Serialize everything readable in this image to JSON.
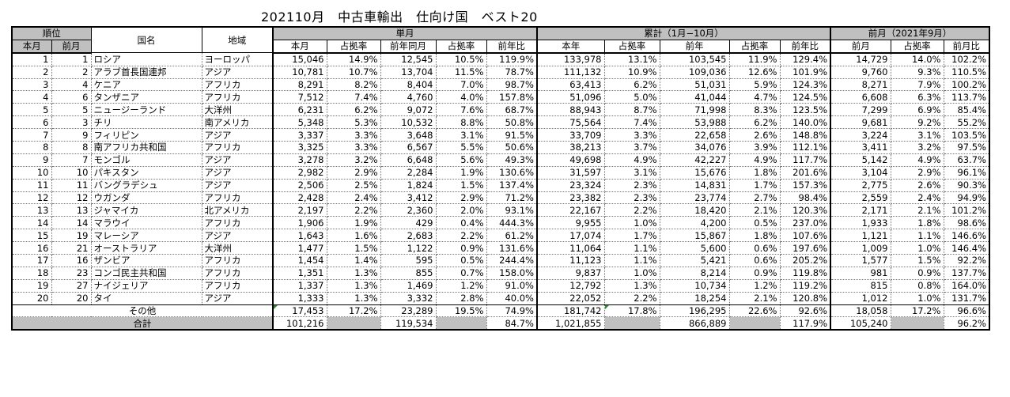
{
  "title": "202110月　中古車輸出　仕向け国　ベスト20",
  "headers": {
    "rank": "順位",
    "country": "国名",
    "region": "地域",
    "monthly": "単月",
    "cumulative": "累計（1月−10月）",
    "prev_month": "前月（2021年9月）",
    "this_month_rank": "本月",
    "prev_month_rank": "前月",
    "m_this": "本月",
    "m_share": "占拠率",
    "m_prev_year": "前年同月",
    "m_share2": "占拠率",
    "m_yoy": "前年比",
    "c_this": "本年",
    "c_share": "占拠率",
    "c_prev": "前年",
    "c_share2": "占拠率",
    "c_yoy": "前年比",
    "p_prev": "前月",
    "p_share": "占拠率",
    "p_ratio": "前月比"
  },
  "rows": [
    {
      "rank": "1",
      "prev": "1",
      "country": "ロシア",
      "region": "ヨーロッパ",
      "m": "15,046",
      "ms": "14.9%",
      "my": "12,545",
      "mys": "10.5%",
      "myoy": "119.9%",
      "c": "133,978",
      "cs": "13.1%",
      "cp": "103,545",
      "cps": "11.9%",
      "cyoy": "129.4%",
      "p": "14,729",
      "ps": "14.0%",
      "pr": "102.2%"
    },
    {
      "rank": "2",
      "prev": "2",
      "country": "アラブ首長国連邦",
      "region": "アジア",
      "m": "10,781",
      "ms": "10.7%",
      "my": "13,704",
      "mys": "11.5%",
      "myoy": "78.7%",
      "c": "111,132",
      "cs": "10.9%",
      "cp": "109,036",
      "cps": "12.6%",
      "cyoy": "101.9%",
      "p": "9,760",
      "ps": "9.3%",
      "pr": "110.5%"
    },
    {
      "rank": "3",
      "prev": "4",
      "country": "ケニア",
      "region": "アフリカ",
      "m": "8,291",
      "ms": "8.2%",
      "my": "8,404",
      "mys": "7.0%",
      "myoy": "98.7%",
      "c": "63,413",
      "cs": "6.2%",
      "cp": "51,031",
      "cps": "5.9%",
      "cyoy": "124.3%",
      "p": "8,271",
      "ps": "7.9%",
      "pr": "100.2%"
    },
    {
      "rank": "4",
      "prev": "6",
      "country": "タンザニア",
      "region": "アフリカ",
      "m": "7,512",
      "ms": "7.4%",
      "my": "4,760",
      "mys": "4.0%",
      "myoy": "157.8%",
      "c": "51,096",
      "cs": "5.0%",
      "cp": "41,044",
      "cps": "4.7%",
      "cyoy": "124.5%",
      "p": "6,608",
      "ps": "6.3%",
      "pr": "113.7%"
    },
    {
      "rank": "5",
      "prev": "5",
      "country": "ニュージーランド",
      "region": "大洋州",
      "m": "6,231",
      "ms": "6.2%",
      "my": "9,072",
      "mys": "7.6%",
      "myoy": "68.7%",
      "c": "88,943",
      "cs": "8.7%",
      "cp": "71,998",
      "cps": "8.3%",
      "cyoy": "123.5%",
      "p": "7,299",
      "ps": "6.9%",
      "pr": "85.4%"
    },
    {
      "rank": "6",
      "prev": "3",
      "country": "チリ",
      "region": "南アメリカ",
      "m": "5,348",
      "ms": "5.3%",
      "my": "10,532",
      "mys": "8.8%",
      "myoy": "50.8%",
      "c": "75,564",
      "cs": "7.4%",
      "cp": "53,988",
      "cps": "6.2%",
      "cyoy": "140.0%",
      "p": "9,681",
      "ps": "9.2%",
      "pr": "55.2%"
    },
    {
      "rank": "7",
      "prev": "9",
      "country": "フィリピン",
      "region": "アジア",
      "m": "3,337",
      "ms": "3.3%",
      "my": "3,648",
      "mys": "3.1%",
      "myoy": "91.5%",
      "c": "33,709",
      "cs": "3.3%",
      "cp": "22,658",
      "cps": "2.6%",
      "cyoy": "148.8%",
      "p": "3,224",
      "ps": "3.1%",
      "pr": "103.5%"
    },
    {
      "rank": "8",
      "prev": "8",
      "country": "南アフリカ共和国",
      "region": "アフリカ",
      "m": "3,325",
      "ms": "3.3%",
      "my": "6,567",
      "mys": "5.5%",
      "myoy": "50.6%",
      "c": "38,213",
      "cs": "3.7%",
      "cp": "34,076",
      "cps": "3.9%",
      "cyoy": "112.1%",
      "p": "3,411",
      "ps": "3.2%",
      "pr": "97.5%"
    },
    {
      "rank": "9",
      "prev": "7",
      "country": "モンゴル",
      "region": "アジア",
      "m": "3,278",
      "ms": "3.2%",
      "my": "6,648",
      "mys": "5.6%",
      "myoy": "49.3%",
      "c": "49,698",
      "cs": "4.9%",
      "cp": "42,227",
      "cps": "4.9%",
      "cyoy": "117.7%",
      "p": "5,142",
      "ps": "4.9%",
      "pr": "63.7%"
    },
    {
      "rank": "10",
      "prev": "10",
      "country": "パキスタン",
      "region": "アジア",
      "m": "2,982",
      "ms": "2.9%",
      "my": "2,284",
      "mys": "1.9%",
      "myoy": "130.6%",
      "c": "31,597",
      "cs": "3.1%",
      "cp": "15,676",
      "cps": "1.8%",
      "cyoy": "201.6%",
      "p": "3,104",
      "ps": "2.9%",
      "pr": "96.1%"
    },
    {
      "rank": "11",
      "prev": "11",
      "country": "バングラデシュ",
      "region": "アジア",
      "m": "2,506",
      "ms": "2.5%",
      "my": "1,824",
      "mys": "1.5%",
      "myoy": "137.4%",
      "c": "23,324",
      "cs": "2.3%",
      "cp": "14,831",
      "cps": "1.7%",
      "cyoy": "157.3%",
      "p": "2,775",
      "ps": "2.6%",
      "pr": "90.3%"
    },
    {
      "rank": "12",
      "prev": "12",
      "country": "ウガンダ",
      "region": "アフリカ",
      "m": "2,428",
      "ms": "2.4%",
      "my": "3,412",
      "mys": "2.9%",
      "myoy": "71.2%",
      "c": "23,382",
      "cs": "2.3%",
      "cp": "23,774",
      "cps": "2.7%",
      "cyoy": "98.4%",
      "p": "2,559",
      "ps": "2.4%",
      "pr": "94.9%"
    },
    {
      "rank": "13",
      "prev": "13",
      "country": "ジャマイカ",
      "region": "北アメリカ",
      "m": "2,197",
      "ms": "2.2%",
      "my": "2,360",
      "mys": "2.0%",
      "myoy": "93.1%",
      "c": "22,167",
      "cs": "2.2%",
      "cp": "18,420",
      "cps": "2.1%",
      "cyoy": "120.3%",
      "p": "2,171",
      "ps": "2.1%",
      "pr": "101.2%"
    },
    {
      "rank": "14",
      "prev": "14",
      "country": "マラウイ",
      "region": "アフリカ",
      "m": "1,906",
      "ms": "1.9%",
      "my": "429",
      "mys": "0.4%",
      "myoy": "444.3%",
      "c": "9,955",
      "cs": "1.0%",
      "cp": "4,200",
      "cps": "0.5%",
      "cyoy": "237.0%",
      "p": "1,933",
      "ps": "1.8%",
      "pr": "98.6%"
    },
    {
      "rank": "15",
      "prev": "19",
      "country": "マレーシア",
      "region": "アジア",
      "m": "1,643",
      "ms": "1.6%",
      "my": "2,683",
      "mys": "2.2%",
      "myoy": "61.2%",
      "c": "17,074",
      "cs": "1.7%",
      "cp": "15,867",
      "cps": "1.8%",
      "cyoy": "107.6%",
      "p": "1,121",
      "ps": "1.1%",
      "pr": "146.6%"
    },
    {
      "rank": "16",
      "prev": "21",
      "country": "オーストラリア",
      "region": "大洋州",
      "m": "1,477",
      "ms": "1.5%",
      "my": "1,122",
      "mys": "0.9%",
      "myoy": "131.6%",
      "c": "11,064",
      "cs": "1.1%",
      "cp": "5,600",
      "cps": "0.6%",
      "cyoy": "197.6%",
      "p": "1,009",
      "ps": "1.0%",
      "pr": "146.4%"
    },
    {
      "rank": "17",
      "prev": "16",
      "country": "ザンビア",
      "region": "アフリカ",
      "m": "1,454",
      "ms": "1.4%",
      "my": "595",
      "mys": "0.5%",
      "myoy": "244.4%",
      "c": "11,123",
      "cs": "1.1%",
      "cp": "5,421",
      "cps": "0.6%",
      "cyoy": "205.2%",
      "p": "1,577",
      "ps": "1.5%",
      "pr": "92.2%"
    },
    {
      "rank": "18",
      "prev": "23",
      "country": "コンゴ民主共和国",
      "region": "アフリカ",
      "m": "1,351",
      "ms": "1.3%",
      "my": "855",
      "mys": "0.7%",
      "myoy": "158.0%",
      "c": "9,837",
      "cs": "1.0%",
      "cp": "8,214",
      "cps": "0.9%",
      "cyoy": "119.8%",
      "p": "981",
      "ps": "0.9%",
      "pr": "137.7%"
    },
    {
      "rank": "19",
      "prev": "27",
      "country": "ナイジェリア",
      "region": "アフリカ",
      "m": "1,337",
      "ms": "1.3%",
      "my": "1,469",
      "mys": "1.2%",
      "myoy": "91.0%",
      "c": "12,792",
      "cs": "1.3%",
      "cp": "10,734",
      "cps": "1.2%",
      "cyoy": "119.2%",
      "p": "815",
      "ps": "0.8%",
      "pr": "164.0%"
    },
    {
      "rank": "20",
      "prev": "20",
      "country": "タイ",
      "region": "アジア",
      "m": "1,333",
      "ms": "1.3%",
      "my": "3,332",
      "mys": "2.8%",
      "myoy": "40.0%",
      "c": "22,052",
      "cs": "2.2%",
      "cp": "18,254",
      "cps": "2.1%",
      "cyoy": "120.8%",
      "p": "1,012",
      "ps": "1.0%",
      "pr": "131.7%"
    }
  ],
  "other": {
    "label": "その他",
    "m": "17,453",
    "ms": "17.2%",
    "my": "23,289",
    "mys": "19.5%",
    "myoy": "74.9%",
    "c": "181,742",
    "cs": "17.8%",
    "cp": "196,295",
    "cps": "22.6%",
    "cyoy": "92.6%",
    "p": "18,058",
    "ps": "17.2%",
    "pr": "96.6%"
  },
  "total": {
    "label": "合計",
    "m": "101,216",
    "my": "119,534",
    "myoy": "84.7%",
    "c": "1,021,855",
    "cp": "866,889",
    "cyoy": "117.9%",
    "p": "105,240",
    "pr": "96.2%"
  },
  "colors": {
    "header_bg": "#c0c0c0",
    "marker": "#2a8f2a"
  }
}
